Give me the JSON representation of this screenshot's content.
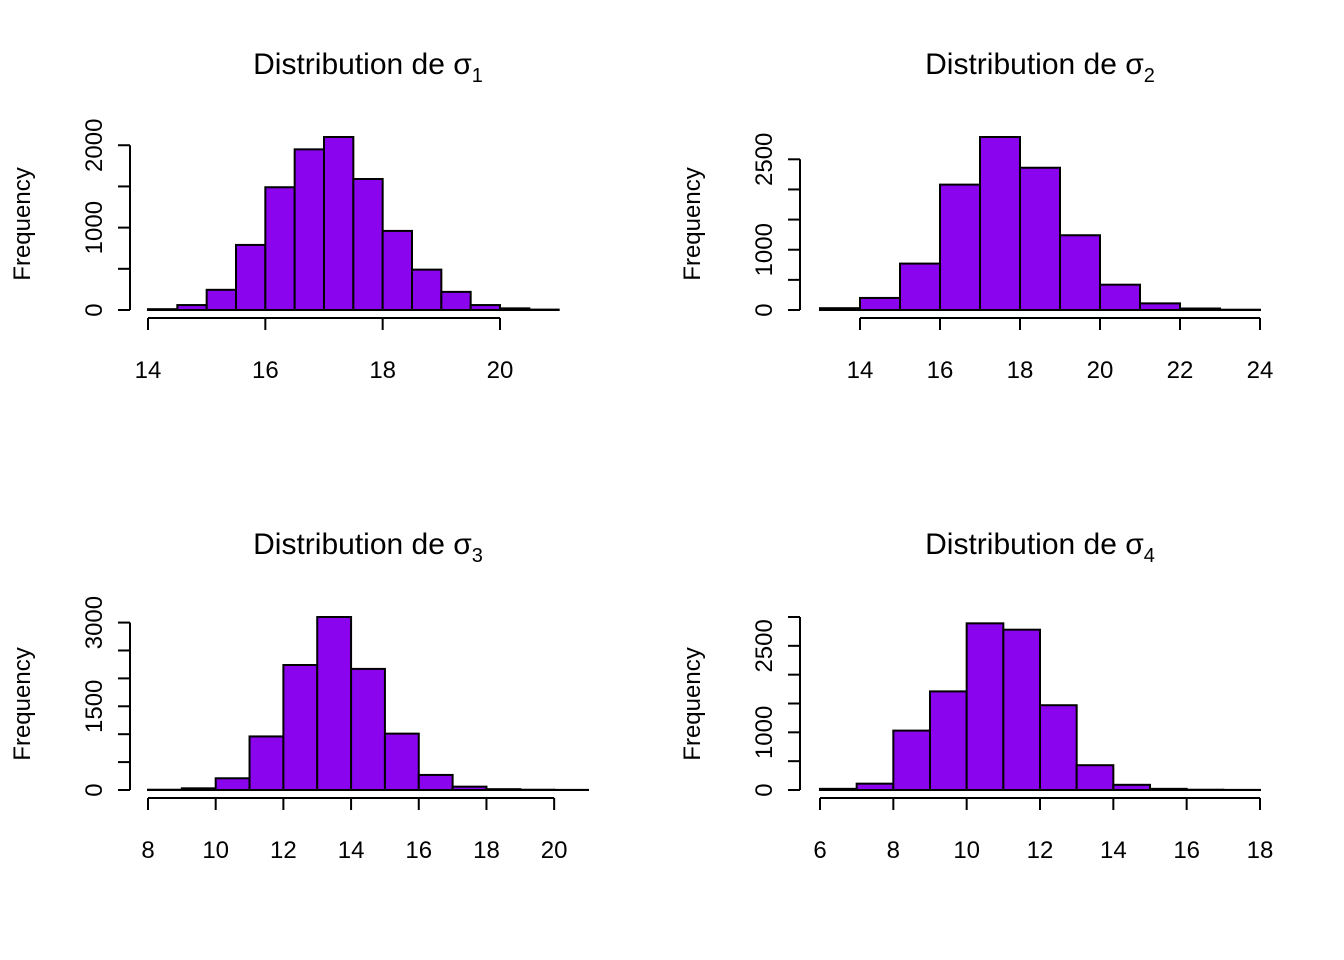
{
  "colors": {
    "bar_fill": "#8A05EE",
    "bar_stroke": "#000000",
    "background": "#FFFFFF"
  },
  "chart_data": [
    {
      "type": "bar",
      "title": "Distribution de",
      "title_symbol": "σ",
      "title_subscript": "1",
      "xlabel": "",
      "ylabel": "Frequency",
      "bin_edges": [
        14,
        14.5,
        15,
        15.5,
        16,
        16.5,
        17,
        17.5,
        18,
        18.5,
        19,
        19.5,
        20,
        20.5,
        21
      ],
      "values": [
        10,
        60,
        245,
        790,
        1490,
        1950,
        2100,
        1590,
        960,
        490,
        220,
        60,
        20,
        5
      ],
      "xlim": [
        14,
        21.5
      ],
      "ylim": [
        0,
        2100
      ],
      "xticks": [
        14,
        16,
        18,
        20
      ],
      "yticks": [
        0,
        500,
        1000,
        1500,
        2000
      ],
      "yticklabels": [
        "0",
        "",
        "1000",
        "",
        "2000"
      ],
      "grid": false
    },
    {
      "type": "bar",
      "title": "Distribution de",
      "title_symbol": "σ",
      "title_subscript": "2",
      "xlabel": "",
      "ylabel": "Frequency",
      "bin_edges": [
        13,
        14,
        15,
        16,
        17,
        18,
        19,
        20,
        21,
        22,
        23,
        24
      ],
      "values": [
        30,
        200,
        770,
        2080,
        2870,
        2360,
        1240,
        420,
        110,
        25,
        5
      ],
      "xlim": [
        13,
        24
      ],
      "ylim": [
        0,
        2870
      ],
      "xticks": [
        14,
        16,
        18,
        20,
        22,
        24
      ],
      "yticks": [
        0,
        500,
        1000,
        1500,
        2000,
        2500
      ],
      "yticklabels": [
        "0",
        "",
        "1000",
        "",
        "",
        "2500"
      ],
      "grid": false
    },
    {
      "type": "bar",
      "title": "Distribution de",
      "title_symbol": "σ",
      "title_subscript": "3",
      "xlabel": "",
      "ylabel": "Frequency",
      "bin_edges": [
        8,
        9,
        10,
        11,
        12,
        13,
        14,
        15,
        16,
        17,
        18,
        19,
        20,
        21
      ],
      "values": [
        5,
        30,
        210,
        960,
        2240,
        3100,
        2170,
        1010,
        270,
        60,
        15,
        5,
        2
      ],
      "xlim": [
        8,
        21
      ],
      "ylim": [
        0,
        3100
      ],
      "xticks": [
        8,
        10,
        12,
        14,
        16,
        18,
        20
      ],
      "yticks": [
        0,
        500,
        1000,
        1500,
        2000,
        2500,
        3000
      ],
      "yticklabels": [
        "0",
        "",
        "",
        "1500",
        "",
        "",
        "3000"
      ],
      "grid": false
    },
    {
      "type": "bar",
      "title": "Distribution de",
      "title_symbol": "σ",
      "title_subscript": "4",
      "xlabel": "",
      "ylabel": "Frequency",
      "bin_edges": [
        6,
        7,
        8,
        9,
        10,
        11,
        12,
        13,
        14,
        15,
        16,
        17,
        18
      ],
      "values": [
        20,
        110,
        1030,
        1710,
        2890,
        2780,
        1470,
        430,
        90,
        20,
        5,
        2
      ],
      "xlim": [
        6,
        18
      ],
      "ylim": [
        0,
        3000
      ],
      "xticks": [
        6,
        8,
        10,
        12,
        14,
        16,
        18
      ],
      "yticks": [
        0,
        500,
        1000,
        1500,
        2000,
        2500,
        3000
      ],
      "yticklabels": [
        "0",
        "",
        "1000",
        "",
        "",
        "2500",
        ""
      ],
      "grid": false
    }
  ]
}
